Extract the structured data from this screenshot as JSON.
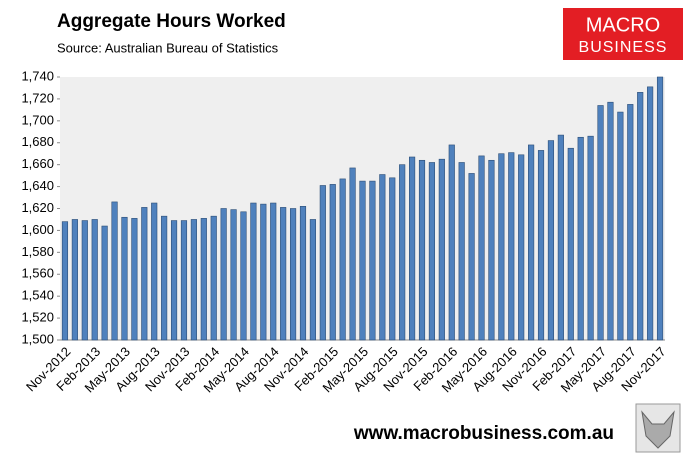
{
  "chart_data": {
    "type": "bar",
    "title": "Aggregate Hours Worked",
    "subtitle": "Source: Australian Bureau of Statistics",
    "logo": [
      "MACRO",
      "BUSINESS"
    ],
    "footer": "www.macrobusiness.com.au",
    "categories": [
      "Nov-2012",
      null,
      null,
      "Feb-2013",
      null,
      null,
      "May-2013",
      null,
      null,
      "Aug-2013",
      null,
      null,
      "Nov-2013",
      null,
      null,
      "Feb-2014",
      null,
      null,
      "May-2014",
      null,
      null,
      "Aug-2014",
      null,
      null,
      "Nov-2014",
      null,
      null,
      "Feb-2015",
      null,
      null,
      "May-2015",
      null,
      null,
      "Aug-2015",
      null,
      null,
      "Nov-2015",
      null,
      null,
      "Feb-2016",
      null,
      null,
      "May-2016",
      null,
      null,
      "Aug-2016",
      null,
      null,
      "Nov-2016",
      null,
      null,
      "Feb-2017",
      null,
      null,
      "May-2017",
      null,
      null,
      "Aug-2017",
      null,
      null,
      "Nov-2017"
    ],
    "values": [
      1608,
      1610,
      1609,
      1610,
      1604,
      1626,
      1612,
      1611,
      1621,
      1625,
      1613,
      1609,
      1609,
      1610,
      1611,
      1613,
      1620,
      1619,
      1617,
      1625,
      1624,
      1625,
      1621,
      1620,
      1622,
      1610,
      1641,
      1642,
      1647,
      1657,
      1645,
      1645,
      1651,
      1648,
      1660,
      1667,
      1664,
      1662,
      1665,
      1678,
      1662,
      1652,
      1668,
      1664,
      1670,
      1671,
      1669,
      1678,
      1673,
      1682,
      1687,
      1675,
      1685,
      1686,
      1714,
      1717,
      1708,
      1715,
      1726,
      1731,
      1740
    ],
    "color": "#4f81bd",
    "ylim": [
      1500,
      1740
    ],
    "yticks": [
      {
        "value": 1500,
        "label": "1,500"
      },
      {
        "value": 1520,
        "label": "1,520"
      },
      {
        "value": 1540,
        "label": "1,540"
      },
      {
        "value": 1560,
        "label": "1,560"
      },
      {
        "value": 1580,
        "label": "1,580"
      },
      {
        "value": 1600,
        "label": "1,600"
      },
      {
        "value": 1620,
        "label": "1,620"
      },
      {
        "value": 1640,
        "label": "1,640"
      },
      {
        "value": 1660,
        "label": "1,660"
      },
      {
        "value": 1680,
        "label": "1,680"
      },
      {
        "value": 1700,
        "label": "1,700"
      },
      {
        "value": 1720,
        "label": "1,720"
      },
      {
        "value": 1740,
        "label": "1,740"
      }
    ],
    "grid": false
  }
}
